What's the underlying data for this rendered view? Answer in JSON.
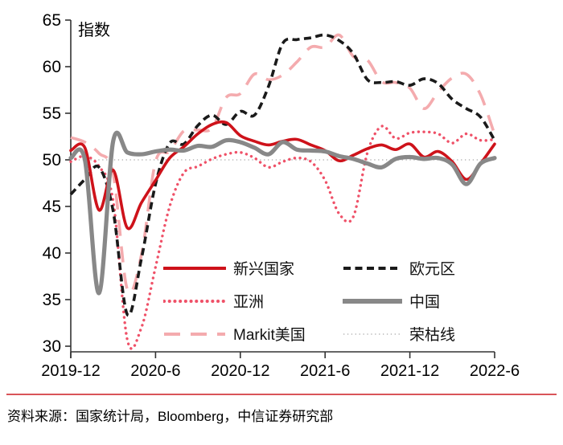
{
  "chart_data": {
    "type": "line",
    "title": "指数",
    "grid": false,
    "legend_position": "inside-bottom-center-two-columns",
    "ylim": [
      30,
      65
    ],
    "y_ticks": [
      30,
      35,
      40,
      45,
      50,
      55,
      60,
      65
    ],
    "x_tick_labels": [
      "2019-12",
      "2020-6",
      "2020-12",
      "2021-6",
      "2021-12",
      "2022-6"
    ],
    "x_tick_positions": [
      0,
      6,
      12,
      18,
      24,
      30
    ],
    "x": [
      "2019-12",
      "2020-1",
      "2020-2",
      "2020-3",
      "2020-4",
      "2020-5",
      "2020-6",
      "2020-7",
      "2020-8",
      "2020-9",
      "2020-10",
      "2020-11",
      "2020-12",
      "2021-1",
      "2021-2",
      "2021-3",
      "2021-4",
      "2021-5",
      "2021-6",
      "2021-7",
      "2021-8",
      "2021-9",
      "2021-10",
      "2021-11",
      "2021-12",
      "2022-1",
      "2022-2",
      "2022-3",
      "2022-4",
      "2022-5",
      "2022-6"
    ],
    "series": [
      {
        "id": "emerging",
        "name": "新兴国家",
        "color": "#ce121a",
        "style": "solid",
        "width": 3.6,
        "values": [
          51.0,
          51.3,
          44.6,
          48.9,
          42.7,
          45.4,
          47.8,
          50.2,
          51.4,
          52.8,
          53.8,
          54.0,
          52.6,
          52.0,
          51.6,
          52.0,
          52.2,
          51.6,
          51.0,
          49.9,
          50.5,
          51.2,
          51.6,
          51.1,
          51.7,
          50.3,
          50.9,
          49.8,
          47.9,
          49.6,
          51.7
        ]
      },
      {
        "id": "eurozone",
        "name": "欧元区",
        "color": "#1a1a1a",
        "style": "dashed",
        "width": 3.6,
        "values": [
          46.3,
          47.9,
          49.2,
          44.5,
          33.4,
          39.4,
          47.4,
          51.8,
          51.7,
          53.7,
          54.8,
          53.8,
          55.2,
          54.8,
          57.9,
          62.5,
          62.9,
          63.1,
          63.4,
          62.8,
          61.4,
          58.6,
          58.3,
          58.4,
          58.0,
          58.7,
          58.2,
          56.5,
          55.5,
          54.6,
          52.1
        ]
      },
      {
        "id": "asia",
        "name": "亚洲",
        "color": "#ef5168",
        "style": "dotted",
        "width": 3.4,
        "values": [
          49.8,
          50.4,
          49.3,
          45.6,
          30.7,
          32.0,
          38.5,
          45.0,
          48.6,
          49.3,
          50.1,
          50.6,
          50.8,
          50.2,
          49.2,
          49.8,
          50.2,
          49.8,
          47.8,
          44.2,
          43.9,
          50.8,
          53.6,
          52.3,
          52.9,
          53.0,
          52.8,
          51.8,
          52.8,
          52.1,
          52.2
        ]
      },
      {
        "id": "china",
        "name": "中国",
        "color": "#888888",
        "style": "solid",
        "width": 5.2,
        "values": [
          50.2,
          50.0,
          35.7,
          52.0,
          50.8,
          50.6,
          50.9,
          51.1,
          51.0,
          51.5,
          51.4,
          52.1,
          51.9,
          51.3,
          50.6,
          51.9,
          51.1,
          51.0,
          50.9,
          50.4,
          50.1,
          49.6,
          49.2,
          50.1,
          50.3,
          50.1,
          50.2,
          49.5,
          47.4,
          49.6,
          50.2
        ]
      },
      {
        "id": "markit-us",
        "name": "Markit美国",
        "color": "#f4abae",
        "style": "longdash",
        "width": 3.6,
        "values": [
          52.4,
          51.9,
          50.7,
          48.5,
          36.1,
          39.8,
          49.8,
          50.9,
          53.1,
          53.2,
          53.4,
          56.7,
          57.1,
          59.2,
          58.6,
          59.1,
          60.5,
          62.1,
          62.1,
          63.4,
          61.1,
          60.7,
          58.4,
          58.3,
          57.7,
          55.5,
          57.3,
          58.8,
          59.2,
          57.0,
          52.7
        ]
      },
      {
        "id": "boom-bust",
        "name": "荣枯线",
        "color": "#b5b5b5",
        "style": "fine-dotted",
        "width": 1.5,
        "values": 50
      }
    ]
  },
  "footer": {
    "source_text": "资料来源：国家统计局，Bloomberg，中信证券研究部",
    "rule_color": "#d95459"
  }
}
